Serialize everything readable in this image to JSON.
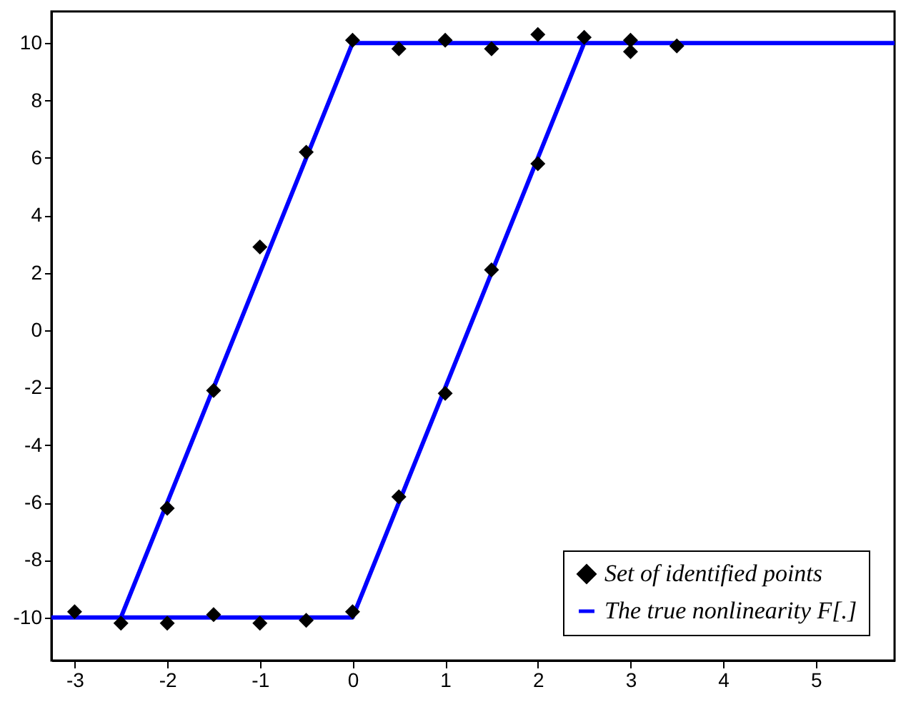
{
  "chart_data": {
    "type": "scatter",
    "xlim": [
      -3.25,
      5.85
    ],
    "xticks": [
      -3,
      -2,
      -1,
      0,
      1,
      2,
      3,
      4,
      5
    ],
    "ylim": [
      -11.5,
      11.1
    ],
    "yticks": [
      -10,
      -8,
      -6,
      -4,
      -2,
      0,
      2,
      4,
      6,
      8,
      10
    ],
    "grid": false,
    "legend": "bottom right",
    "series": [
      {
        "name": "Set of identified points",
        "color": "#000000",
        "marker": "diamond",
        "x": [
          -3,
          -2.5,
          -2,
          -1.5,
          -1,
          -0.5,
          0,
          -2,
          -1.5,
          -1,
          -0.5,
          0,
          0.5,
          1,
          1.5,
          2,
          2.5,
          3,
          3,
          3.5,
          0.5,
          1,
          1.5,
          2
        ],
        "values": [
          -9.8,
          -10.2,
          -10.2,
          -9.9,
          -10.2,
          -10.1,
          -9.8,
          -6.2,
          -2.1,
          2.9,
          6.2,
          10.1,
          9.8,
          10.1,
          9.8,
          10.3,
          10.2,
          10.1,
          9.7,
          9.9,
          -5.8,
          -2.2,
          2.1,
          5.8
        ]
      },
      {
        "name": "The true nonlinearity F[.]",
        "color": "#0000ff",
        "type": "line",
        "line_style": "solid",
        "marker": "none",
        "x": [
          5.85,
          0,
          -2.5,
          -3.25,
          0,
          2.5
        ],
        "values": [
          10,
          10,
          -10,
          -10,
          -10,
          10
        ]
      }
    ]
  }
}
